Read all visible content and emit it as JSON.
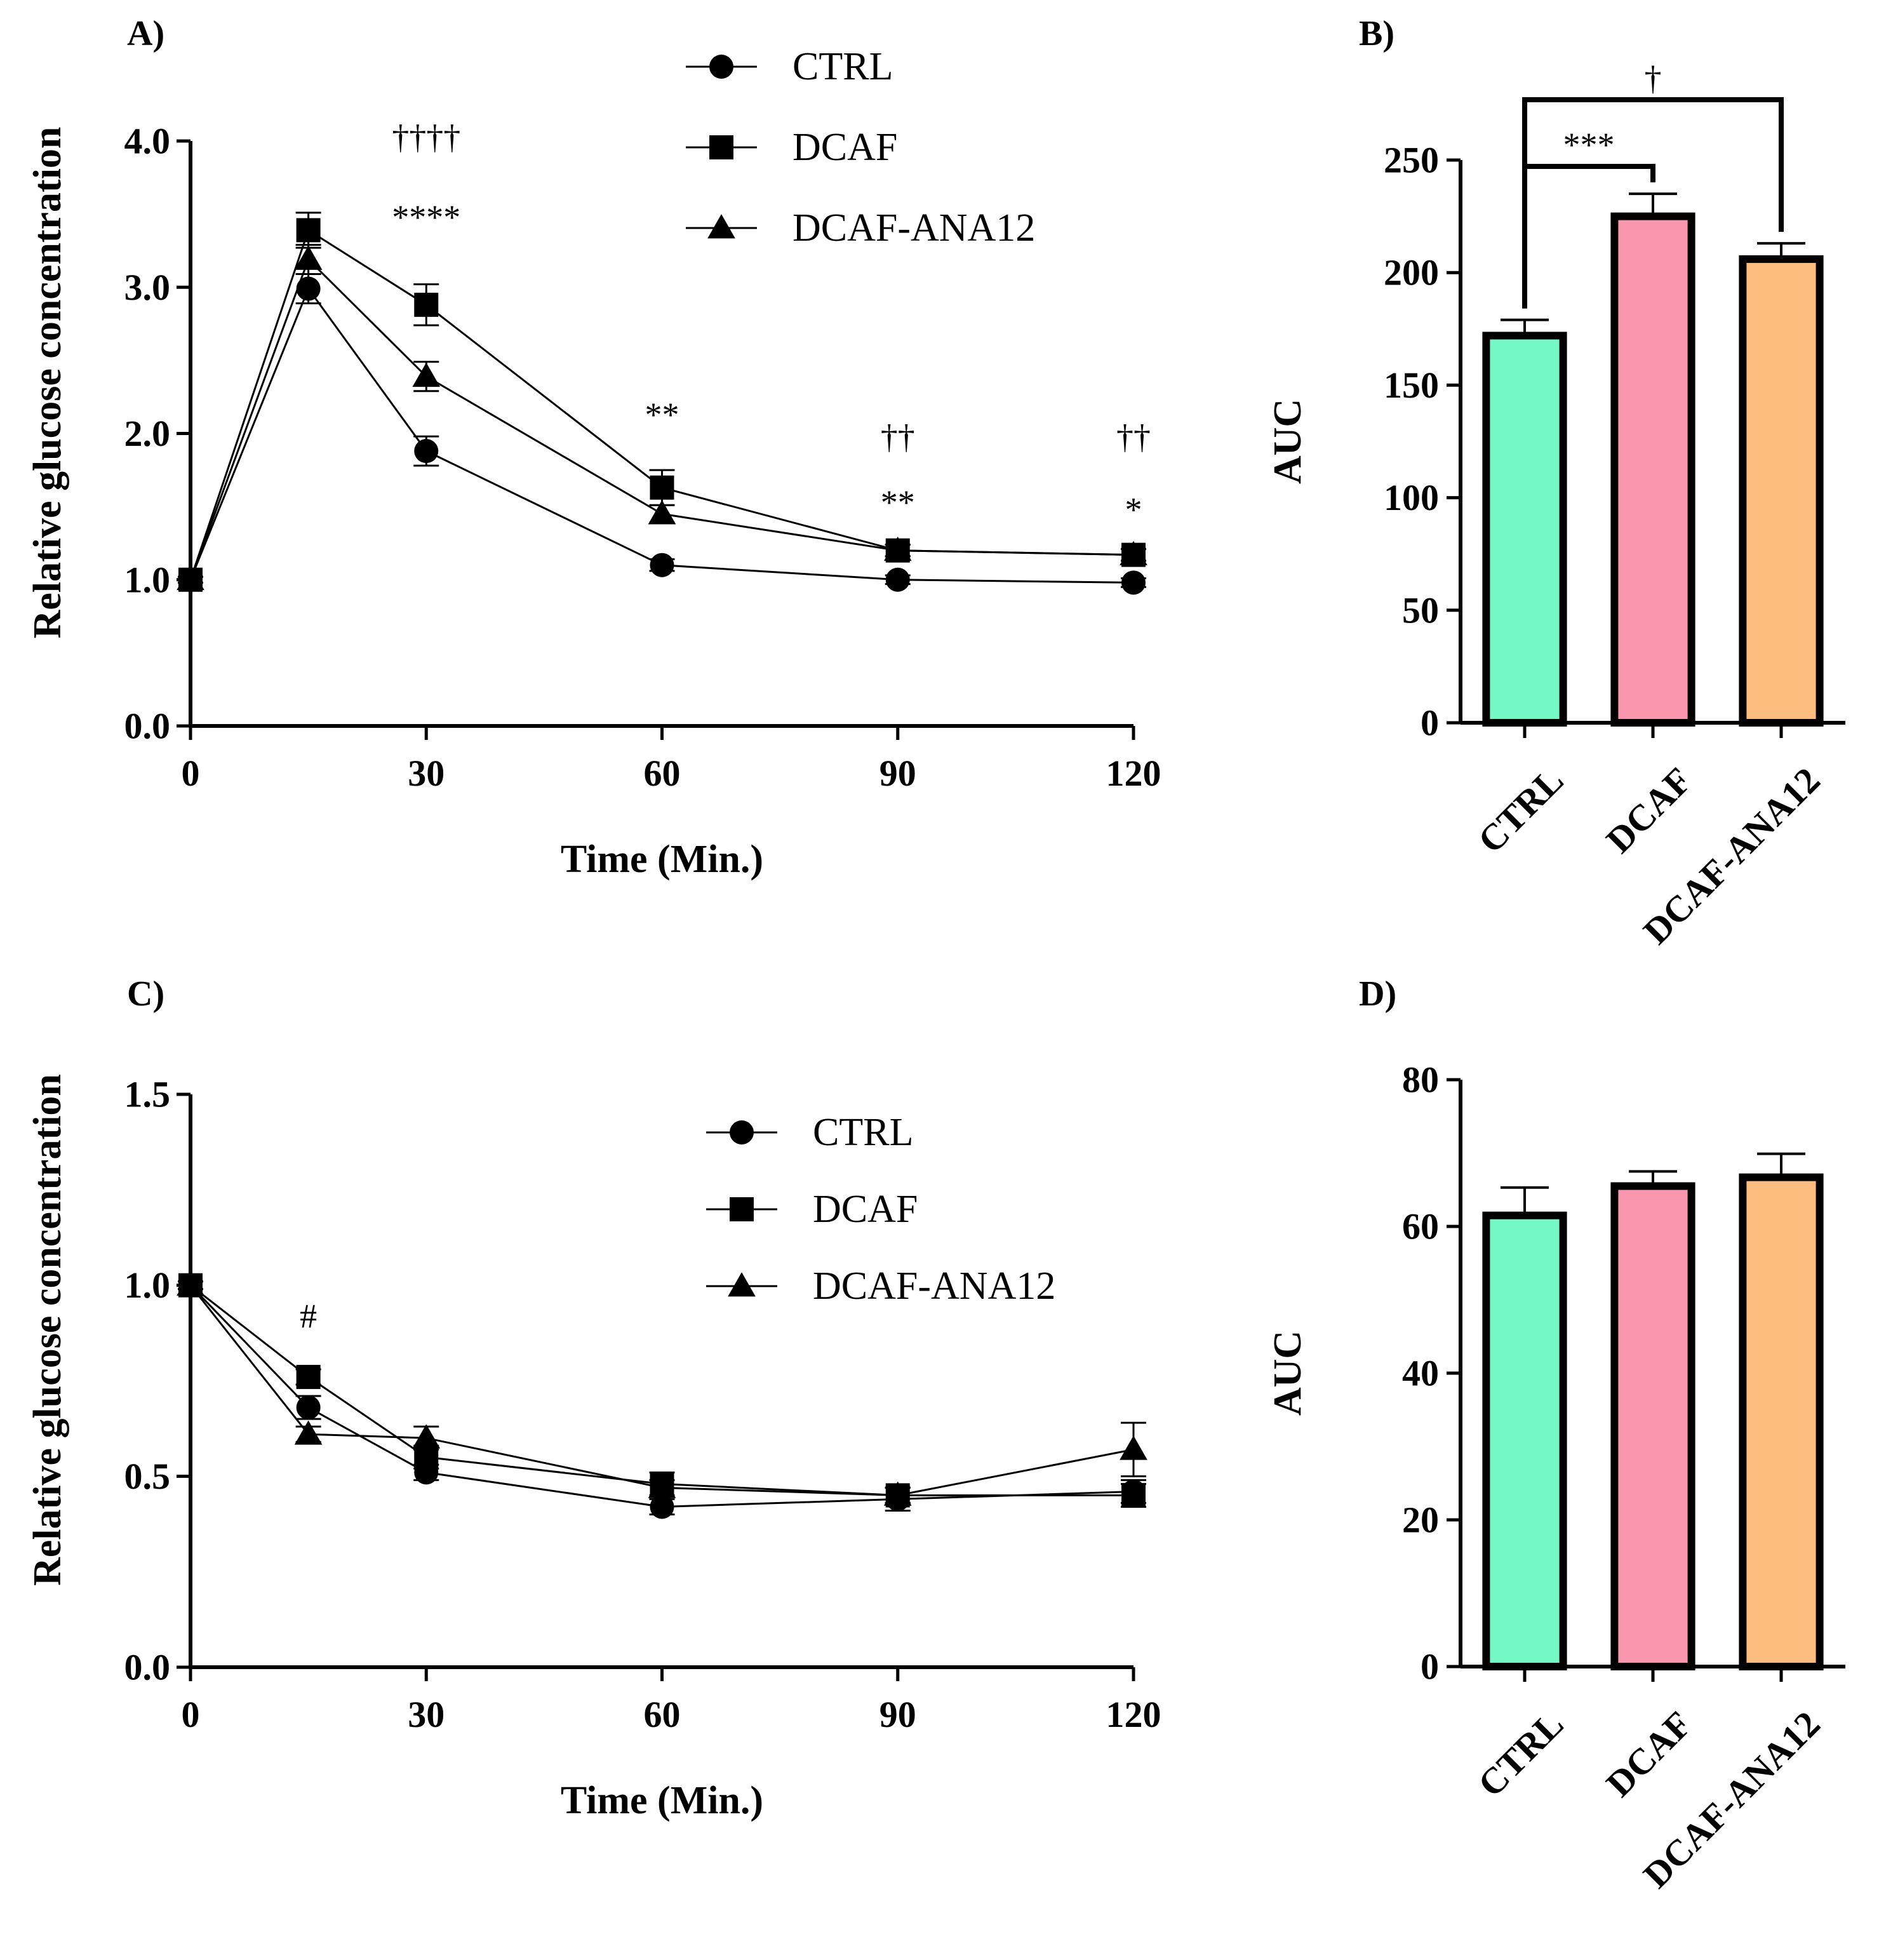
{
  "colors": {
    "line": "#000000",
    "ctrl": "#74f9c6",
    "dcaf": "#fa96ae",
    "dcaf_ana12": "#fcbd7e"
  },
  "chart_data": [
    {
      "id": "A",
      "panel_label": "A)",
      "type": "line",
      "xlabel": "Time (Min.)",
      "ylabel": "Relative glucose concentration",
      "xlim": [
        0,
        120
      ],
      "ylim": [
        0,
        4
      ],
      "x_ticks": [
        "0",
        "30",
        "60",
        "90",
        "120"
      ],
      "y_ticks": [
        "0.0",
        "1.0",
        "2.0",
        "3.0",
        "4.0"
      ],
      "legend_position": "top-center",
      "series": [
        {
          "name": "CTRL",
          "marker": "circle",
          "x": [
            0,
            15,
            30,
            60,
            90,
            120
          ],
          "y": [
            1.0,
            2.99,
            1.88,
            1.1,
            1.0,
            0.98
          ],
          "err": [
            0.02,
            0.1,
            0.1,
            0.04,
            0.03,
            0.03
          ]
        },
        {
          "name": "DCAF",
          "marker": "square",
          "x": [
            0,
            15,
            30,
            60,
            90,
            120
          ],
          "y": [
            1.0,
            3.39,
            2.88,
            1.63,
            1.2,
            1.17
          ],
          "err": [
            0.02,
            0.12,
            0.14,
            0.12,
            0.04,
            0.04
          ]
        },
        {
          "name": "DCAF-ANA12",
          "marker": "triangle",
          "x": [
            0,
            15,
            30,
            60,
            90,
            120
          ],
          "y": [
            1.0,
            3.19,
            2.39,
            1.45,
            1.2,
            1.17
          ],
          "err": [
            0.02,
            0.1,
            0.1,
            0.06,
            0.04,
            0.04
          ]
        }
      ],
      "annotations": [
        {
          "text": "††††",
          "x": 30,
          "y": 3.95
        },
        {
          "text": "****",
          "x": 30,
          "y": 3.4
        },
        {
          "text": "**",
          "x": 60,
          "y": 2.05
        },
        {
          "text": "††",
          "x": 90,
          "y": 1.9
        },
        {
          "text": "**",
          "x": 90,
          "y": 1.45
        },
        {
          "text": "††",
          "x": 120,
          "y": 1.9
        },
        {
          "text": "*",
          "x": 120,
          "y": 1.4
        }
      ]
    },
    {
      "id": "B",
      "panel_label": "B)",
      "type": "bar",
      "ylabel": "AUC",
      "categories": [
        "CTRL",
        "DCAF",
        "DCAF-ANA12"
      ],
      "values": [
        172,
        225,
        206
      ],
      "errors": [
        7,
        10,
        7
      ],
      "ylim": [
        0,
        250
      ],
      "y_ticks": [
        "0",
        "50",
        "100",
        "150",
        "200",
        "250"
      ],
      "significance": [
        {
          "from": 0,
          "to": 1,
          "text": "***"
        },
        {
          "from": 0,
          "to": 2,
          "text": "†"
        }
      ]
    },
    {
      "id": "C",
      "panel_label": "C)",
      "type": "line",
      "xlabel": "Time (Min.)",
      "ylabel": "Relative glucose concentration",
      "xlim": [
        0,
        120
      ],
      "ylim": [
        0,
        1.5
      ],
      "x_ticks": [
        "0",
        "30",
        "60",
        "90",
        "120"
      ],
      "y_ticks": [
        "0.0",
        "0.5",
        "1.0",
        "1.5"
      ],
      "legend_position": "top-right",
      "series": [
        {
          "name": "CTRL",
          "marker": "circle",
          "x": [
            0,
            15,
            30,
            60,
            90,
            120
          ],
          "y": [
            1.0,
            0.68,
            0.51,
            0.42,
            0.44,
            0.46
          ],
          "err": [
            0.01,
            0.03,
            0.02,
            0.02,
            0.03,
            0.03
          ]
        },
        {
          "name": "DCAF",
          "marker": "square",
          "x": [
            0,
            15,
            30,
            60,
            90,
            120
          ],
          "y": [
            1.0,
            0.76,
            0.55,
            0.48,
            0.45,
            0.45
          ],
          "err": [
            0.01,
            0.02,
            0.03,
            0.03,
            0.02,
            0.03
          ]
        },
        {
          "name": "DCAF-ANA12",
          "marker": "triangle",
          "x": [
            0,
            15,
            30,
            60,
            90,
            120
          ],
          "y": [
            1.0,
            0.61,
            0.6,
            0.47,
            0.45,
            0.57
          ],
          "err": [
            0.01,
            0.02,
            0.03,
            0.02,
            0.02,
            0.07
          ]
        }
      ],
      "annotations": [
        {
          "text": "#",
          "x": 15,
          "y": 0.89
        }
      ]
    },
    {
      "id": "D",
      "panel_label": "D)",
      "type": "bar",
      "ylabel": "AUC",
      "categories": [
        "CTRL",
        "DCAF",
        "DCAF-ANA12"
      ],
      "values": [
        61.5,
        65.5,
        66.7
      ],
      "errors": [
        3.8,
        2.0,
        3.2
      ],
      "ylim": [
        0,
        80
      ],
      "y_ticks": [
        "0",
        "20",
        "40",
        "60",
        "80"
      ],
      "significance": []
    }
  ]
}
